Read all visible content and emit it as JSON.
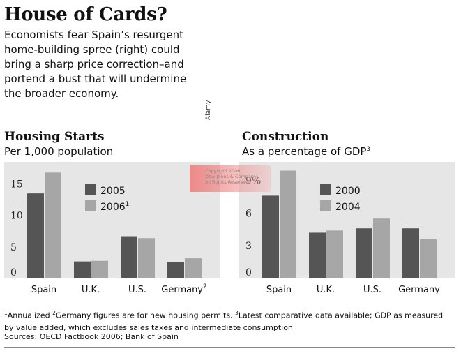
{
  "headline": "House of Cards?",
  "intro": "Economists fear Spain’s resurgent home-building spree (right) could bring a sharp price correction–and portend a bust that will undermine the broader economy.",
  "photo_credit": "Alamy",
  "watermark": {
    "line1": "Copyright 2006",
    "line2": "Dow Jones & Company",
    "line3": "All Rights Reserved"
  },
  "colors": {
    "dark_bar": "#555555",
    "light_bar": "#a6a6a6",
    "panel_bg": "#e6e6e6"
  },
  "chart_data": [
    {
      "type": "bar",
      "title": "Housing Starts",
      "subtitle": "Per 1,000 population",
      "categories": [
        "Spain",
        "U.K.",
        "U.S.",
        "Germany"
      ],
      "category_notes": [
        "",
        "",
        "",
        "2"
      ],
      "series": [
        {
          "name": "2005",
          "note": "",
          "values": [
            13.5,
            2.7,
            6.7,
            2.6
          ]
        },
        {
          "name": "2006",
          "note": "1",
          "values": [
            16.8,
            2.8,
            6.4,
            3.2
          ]
        }
      ],
      "yticks": [
        "0",
        "5",
        "10",
        "15"
      ],
      "ylim": [
        0,
        18.5
      ],
      "grid": false,
      "legend": "top-center"
    },
    {
      "type": "bar",
      "title": "Construction",
      "subtitle": "As a percentage of GDP",
      "subtitle_note": "3",
      "categories": [
        "Spain",
        "U.K.",
        "U.S.",
        "Germany"
      ],
      "category_notes": [
        "",
        "",
        "",
        ""
      ],
      "series": [
        {
          "name": "2000",
          "note": "",
          "values": [
            7.6,
            4.2,
            4.6,
            4.6
          ]
        },
        {
          "name": "2004",
          "note": "",
          "values": [
            9.9,
            4.4,
            5.5,
            3.6
          ]
        }
      ],
      "yticks": [
        "0",
        "3",
        "6",
        "9%"
      ],
      "ylim": [
        0,
        10.7
      ],
      "grid": false,
      "legend": "top-center"
    }
  ],
  "footnotes": {
    "n1": "1",
    "t1": "Annualized ",
    "n2": "2",
    "t2": "Germany figures are for new housing permits. ",
    "n3": "3",
    "t3": "Latest comparative data available; GDP as measured by value added, which excludes sales taxes and intermediate consumption"
  },
  "sources": "Sources: OECD Factbook 2006; Bank of Spain"
}
